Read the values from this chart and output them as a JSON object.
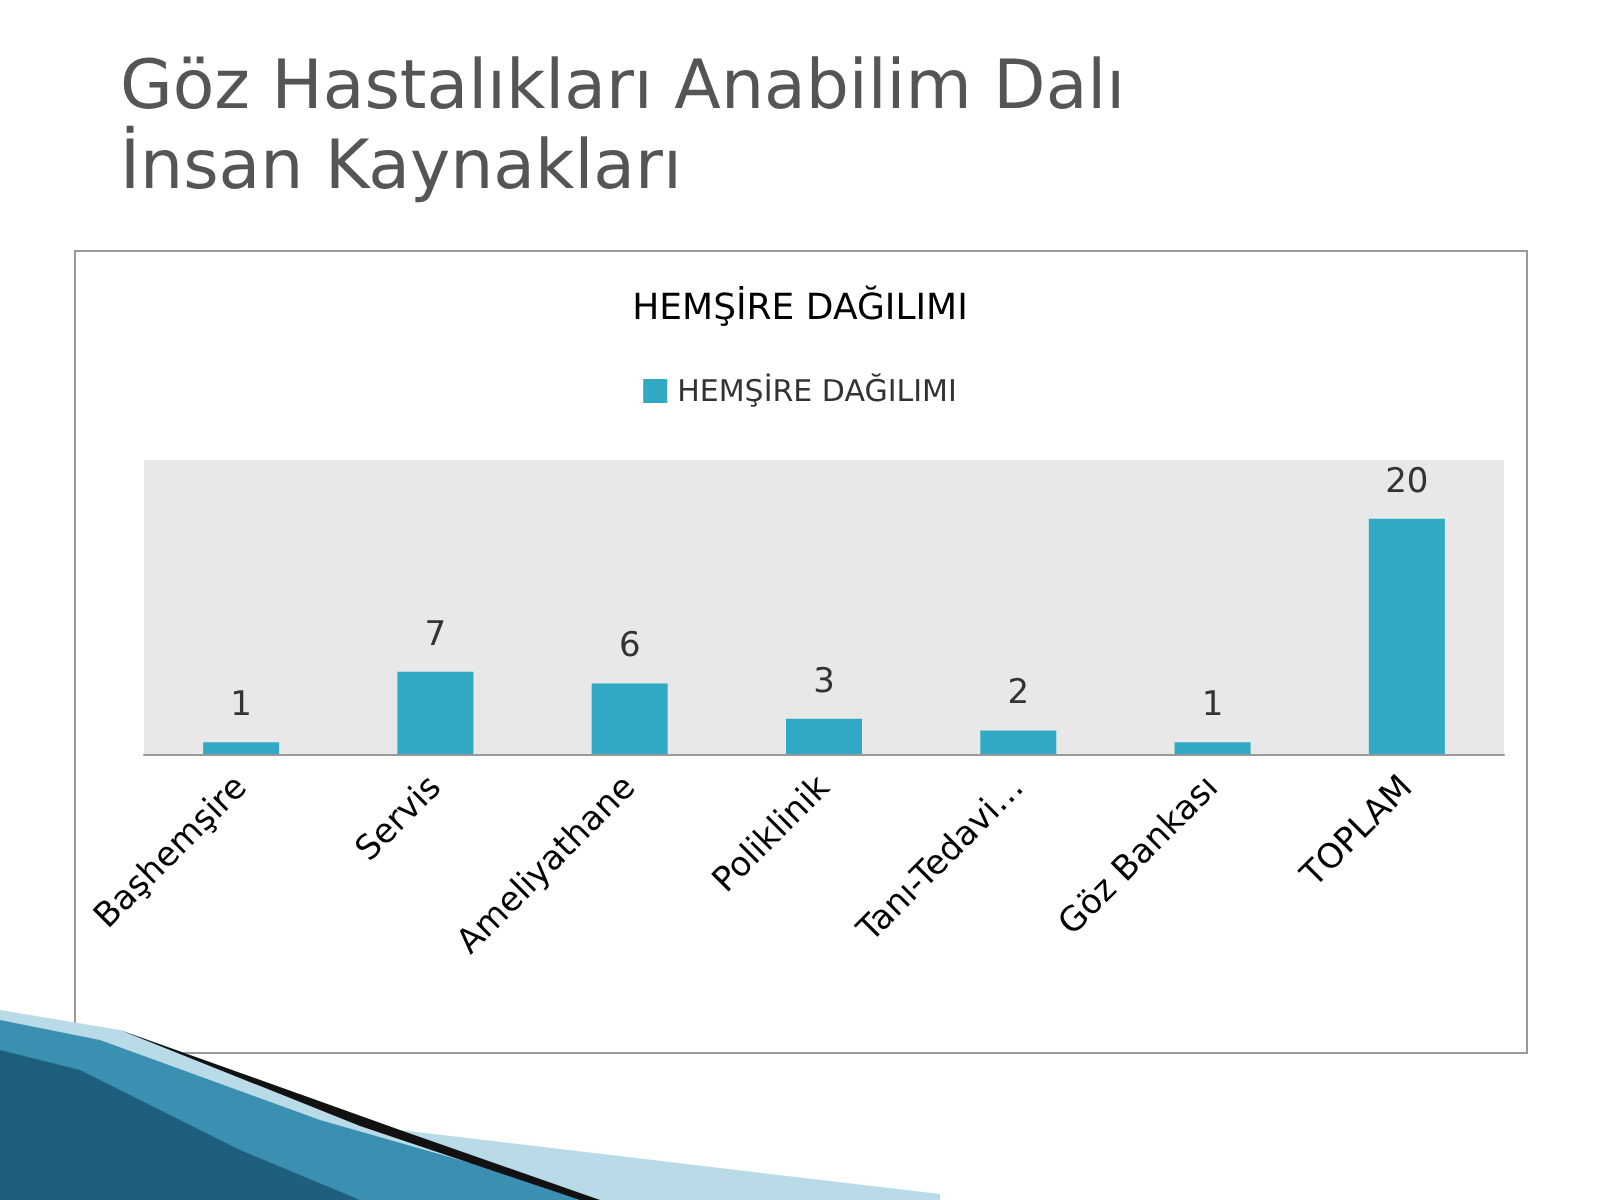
{
  "chart_data": {
    "type": "bar",
    "title": "Göz Hastalıkları Anabilim Dalı\nİnsan Kaynakları",
    "subtitle": "HEMŞİRE DAĞILIMI",
    "categories": [
      "Başhemşire",
      "Servis",
      "Ameliyathane",
      "Poliklinik",
      "Tanı-Tedavi…",
      "Göz Bankası",
      "TOPLAM"
    ],
    "series": [
      {
        "name": "HEMŞİRE DAĞILIMI",
        "color": "#31a8c4",
        "values": [
          1,
          7,
          6,
          3,
          2,
          1,
          20
        ]
      }
    ],
    "data_labels": true,
    "legend": "top"
  }
}
